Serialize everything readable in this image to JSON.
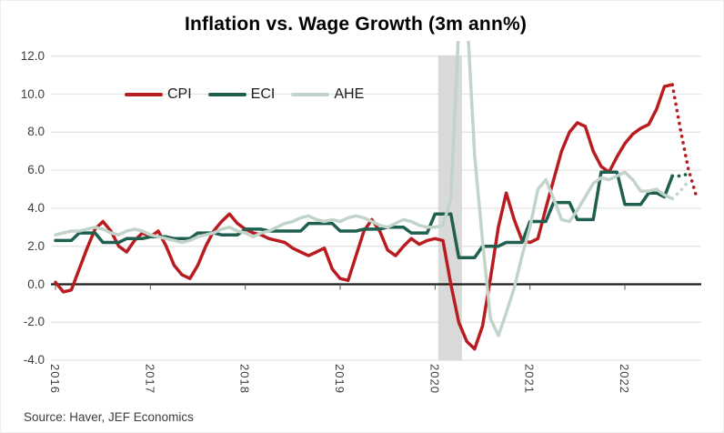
{
  "title": "Inflation vs. Wage Growth (3m ann%)",
  "source_note": "Source: Haver, JEF Economics",
  "legend": [
    {
      "label": "CPI",
      "color": "#b91c20"
    },
    {
      "label": "ECI",
      "color": "#1e5f4f"
    },
    {
      "label": "AHE",
      "color": "#c2d4ca"
    }
  ],
  "chart_data": {
    "type": "line",
    "title": "Inflation vs. Wage Growth (3m ann%)",
    "x_start": "2016-01",
    "x_frequency": "monthly",
    "year_labels": [
      "2016",
      "2017",
      "2018",
      "2019",
      "2020",
      "2021",
      "2022"
    ],
    "ylim": [
      -4,
      12
    ],
    "ytick_values": [
      12,
      10,
      8,
      6,
      4,
      2,
      0,
      -2,
      -4
    ],
    "ytick_labels": [
      "12.0",
      "10.0",
      "8.0",
      "6.0",
      "4.0",
      "2.0",
      "0.0",
      "-2.0",
      "-4.0"
    ],
    "grid": "horizontal-only",
    "zero_line": true,
    "legend_position": "top-left-inside",
    "recession_band_month_range": [
      48.4,
      51.4
    ],
    "band_color": "#d9d9d9",
    "gridline_color": "#e4e4e4",
    "series": [
      {
        "name": "CPI",
        "color": "#b91c20",
        "solid_end_index": 78,
        "dotted_tail": "forecast",
        "values": [
          0.1,
          -0.4,
          -0.3,
          0.8,
          1.9,
          2.9,
          3.3,
          2.8,
          2.0,
          1.7,
          2.3,
          2.7,
          2.5,
          2.8,
          2.0,
          1.0,
          0.5,
          0.3,
          1.0,
          2.0,
          2.8,
          3.3,
          3.7,
          3.2,
          2.9,
          2.7,
          2.6,
          2.4,
          2.3,
          2.2,
          1.9,
          1.7,
          1.5,
          1.7,
          1.9,
          0.8,
          0.3,
          0.2,
          1.5,
          2.8,
          3.4,
          2.8,
          1.8,
          1.5,
          2.0,
          2.4,
          2.1,
          2.3,
          2.4,
          2.3,
          0.0,
          -2.0,
          -3.0,
          -3.4,
          -2.2,
          0.3,
          3.0,
          4.8,
          3.4,
          2.3,
          2.2,
          2.4,
          4.0,
          5.5,
          7.0,
          8.0,
          8.5,
          8.3,
          7.0,
          6.2,
          5.9,
          6.7,
          7.4,
          7.9,
          8.2,
          8.4,
          9.2,
          10.4,
          10.5,
          8.2,
          6.1,
          4.7
        ]
      },
      {
        "name": "ECI",
        "color": "#1e5f4f",
        "solid_end_index": 78,
        "dotted_tail": "forecast",
        "values": [
          2.3,
          2.3,
          2.3,
          2.7,
          2.7,
          2.7,
          2.2,
          2.2,
          2.2,
          2.4,
          2.4,
          2.4,
          2.5,
          2.5,
          2.5,
          2.4,
          2.4,
          2.4,
          2.7,
          2.7,
          2.7,
          2.6,
          2.6,
          2.6,
          2.9,
          2.9,
          2.9,
          2.8,
          2.8,
          2.8,
          2.8,
          2.8,
          3.2,
          3.2,
          3.2,
          3.2,
          2.8,
          2.8,
          2.8,
          2.9,
          2.9,
          2.9,
          3.0,
          3.0,
          3.0,
          2.7,
          2.7,
          2.7,
          3.7,
          3.7,
          3.7,
          1.4,
          1.4,
          1.4,
          2.0,
          2.0,
          2.0,
          2.2,
          2.2,
          2.2,
          3.3,
          3.3,
          3.3,
          4.3,
          4.3,
          4.3,
          3.4,
          3.4,
          3.4,
          5.9,
          5.9,
          5.9,
          4.2,
          4.2,
          4.2,
          4.8,
          4.8,
          4.6,
          5.7,
          5.7,
          5.8
        ]
      },
      {
        "name": "AHE",
        "color": "#c2d4ca",
        "solid_end_index": 78,
        "dotted_tail": "forecast",
        "values": [
          2.6,
          2.7,
          2.8,
          2.8,
          2.9,
          3.0,
          2.9,
          2.7,
          2.6,
          2.8,
          2.9,
          2.8,
          2.6,
          2.5,
          2.4,
          2.3,
          2.2,
          2.3,
          2.5,
          2.6,
          2.7,
          2.9,
          3.0,
          2.8,
          2.7,
          2.5,
          2.7,
          2.8,
          3.0,
          3.2,
          3.3,
          3.5,
          3.6,
          3.4,
          3.3,
          3.4,
          3.3,
          3.5,
          3.6,
          3.5,
          3.3,
          3.1,
          3.0,
          3.2,
          3.4,
          3.3,
          3.1,
          3.0,
          3.0,
          3.1,
          4.5,
          13.5,
          14.5,
          6.8,
          2.3,
          -1.8,
          -2.7,
          -1.5,
          -0.2,
          1.5,
          3.0,
          5.0,
          5.5,
          4.5,
          3.4,
          3.3,
          3.9,
          4.6,
          5.3,
          5.6,
          5.5,
          5.7,
          5.9,
          5.5,
          4.9,
          4.9,
          5.0,
          4.7,
          4.5,
          4.9,
          5.4
        ]
      }
    ]
  }
}
